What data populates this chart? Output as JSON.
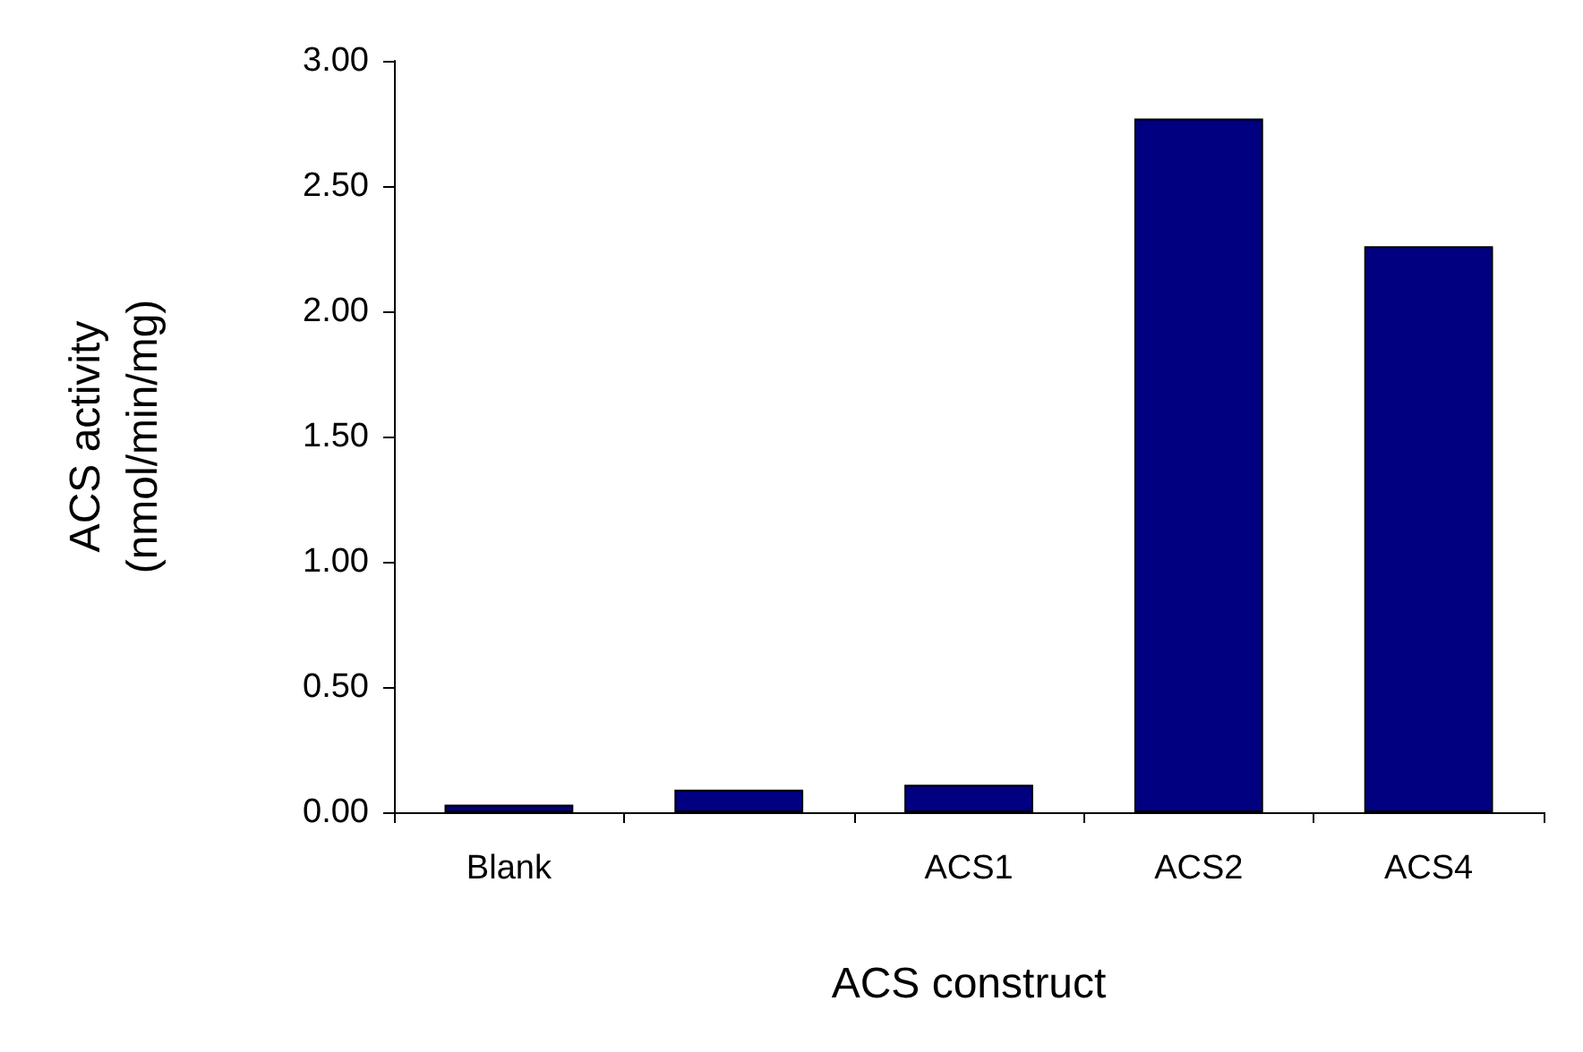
{
  "chart_data": {
    "type": "bar",
    "xlabel": "ACS construct",
    "ylabel": "ACS activity\n(nmol/min/mg)",
    "categories": [
      "Blank",
      null,
      "ACS1",
      "ACS2",
      "ACS4"
    ],
    "values": [
      0.03,
      0.09,
      0.11,
      2.77,
      2.26
    ],
    "color": "#000080",
    "ylim": [
      0,
      3
    ],
    "yticks": [
      {
        "value": 0,
        "label": "0.00"
      },
      {
        "value": 0.5,
        "label": "0.50"
      },
      {
        "value": 1,
        "label": "1.00"
      },
      {
        "value": 1.5,
        "label": "1.50"
      },
      {
        "value": 2,
        "label": "2.00"
      },
      {
        "value": 2.5,
        "label": "2.50"
      },
      {
        "value": 3,
        "label": "3.00"
      }
    ],
    "grid": false
  }
}
